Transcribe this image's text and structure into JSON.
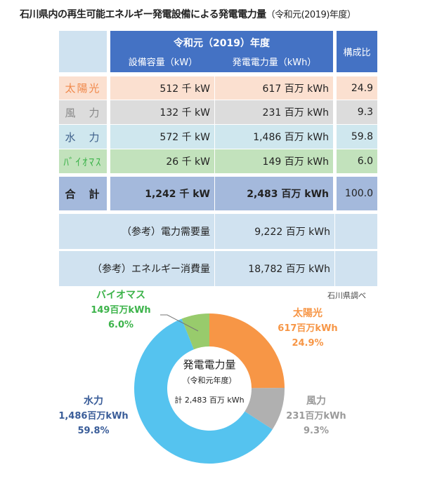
{
  "title": "石川県内の再生可能エネルギー発電設備による発電電力量",
  "title_sub": "（令和元(2019)年度）",
  "table": {
    "header_year": "令和元（2019）年度",
    "header_capacity": "設備容量（kW）",
    "header_generation": "発電電力量（kWh）",
    "header_ratio": "構成比",
    "rows": [
      {
        "label": "太陽光",
        "capacity": "512 千 kW",
        "generation": "617 百万 kWh",
        "ratio": "24.9",
        "bg": "#fbe0d0",
        "labelColor": "#f0884a"
      },
      {
        "label": "風　力",
        "capacity": "132 千 kW",
        "generation": "231 百万 kWh",
        "ratio": "9.3",
        "bg": "#dcdcdc",
        "labelColor": "#888888"
      },
      {
        "label": "水　力",
        "capacity": "572 千 kW",
        "generation": "1,486 百万 kWh",
        "ratio": "59.8",
        "bg": "#cfe7ee",
        "labelColor": "#3d5f8a"
      },
      {
        "label": "ﾊﾞｲｵﾏｽ",
        "capacity": "26 千 kW",
        "generation": "149 百万 kWh",
        "ratio": "6.0",
        "bg": "#c2e2bc",
        "labelColor": "#3cb34a"
      }
    ],
    "total": {
      "label": "合　計",
      "capacity": "1,242 千 kW",
      "generation": "2,483 百万 kWh",
      "ratio": "100.0"
    },
    "ref1": {
      "label": "（参考）電力需要量",
      "value": "9,222 百万 kWh"
    },
    "ref2": {
      "label": "（参考）エネルギー消費量",
      "value": "18,782 百万 kWh"
    }
  },
  "source": "石川県調べ",
  "chart_data": {
    "type": "pie",
    "title": "発電電力量",
    "subtitle": "（令和元年度）",
    "center_total": "計 2,483 百万 kWh",
    "unit": "百万kWh",
    "slices": [
      {
        "name": "太陽光",
        "value": 617,
        "value_label": "617百万kWh",
        "percent": 24.9,
        "percent_label": "24.9%",
        "color": "#f79646",
        "textColor": "#f79646"
      },
      {
        "name": "風力",
        "value": 231,
        "value_label": "231百万kWh",
        "percent": 9.3,
        "percent_label": "9.3%",
        "color": "#b0b0b0",
        "textColor": "#9a9a9a"
      },
      {
        "name": "水力",
        "value": 1486,
        "value_label": "1,486百万kWh",
        "percent": 59.8,
        "percent_label": "59.8%",
        "color": "#55c3ef",
        "textColor": "#3a5d99"
      },
      {
        "name": "バイオマス",
        "value": 149,
        "value_label": "149百万kWh",
        "percent": 6.0,
        "percent_label": "6.0%",
        "color": "#98cb6c",
        "textColor": "#3cb34a"
      }
    ]
  }
}
